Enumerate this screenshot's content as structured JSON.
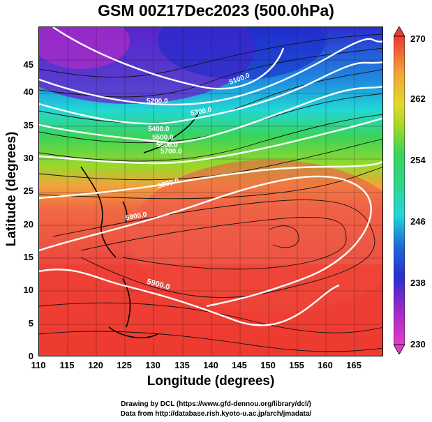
{
  "title": "GSM 00Z17Dec2023 (500.0hPa)",
  "xlabel": "Longitude (degrees)",
  "ylabel": "Latitude  (degrees)",
  "x_ticks": [
    "110",
    "115",
    "120",
    "125",
    "130",
    "135",
    "140",
    "145",
    "150",
    "155",
    "160",
    "165"
  ],
  "y_ticks": [
    "0",
    "5",
    "10",
    "15",
    "20",
    "25",
    "30",
    "35",
    "40",
    "45"
  ],
  "colorbar": {
    "ticks": [
      "230",
      "238",
      "246",
      "254",
      "262",
      "270"
    ],
    "colors": [
      "#e23cc8",
      "#7a20c8",
      "#1b2ccc",
      "#1f8ae0",
      "#22d7d6",
      "#3ad35a",
      "#9ad82a",
      "#e5d82a",
      "#f2a43a",
      "#f07a42",
      "#ef5a48",
      "#ee3a30"
    ]
  },
  "contour_labels": [
    "5100.0",
    "5200.0",
    "5300.0",
    "5400.0",
    "5500.0",
    "5600.0",
    "5700.0",
    "5800.0",
    "5900.0",
    "5900.0"
  ],
  "credits": {
    "line1": "Drawing by DCL (https://www.gfd-dennou.org/library/dcl/)",
    "line2": "Data from http://database.rish.kyoto-u.ac.jp/arch/jmadata/"
  },
  "chart_data": {
    "type": "heatmap",
    "title": "GSM 00Z17Dec2023 (500.0hPa)",
    "xlabel": "Longitude (degrees)",
    "ylabel": "Latitude  (degrees)",
    "xlim": [
      110,
      170
    ],
    "ylim": [
      0,
      50
    ],
    "color_range": [
      230,
      270
    ],
    "contour_labels": [
      "5100.0",
      "5200.0",
      "5300.0",
      "5400.0",
      "5500.0",
      "5600.0",
      "5700.0",
      "5800.0",
      "5900.0"
    ]
  }
}
